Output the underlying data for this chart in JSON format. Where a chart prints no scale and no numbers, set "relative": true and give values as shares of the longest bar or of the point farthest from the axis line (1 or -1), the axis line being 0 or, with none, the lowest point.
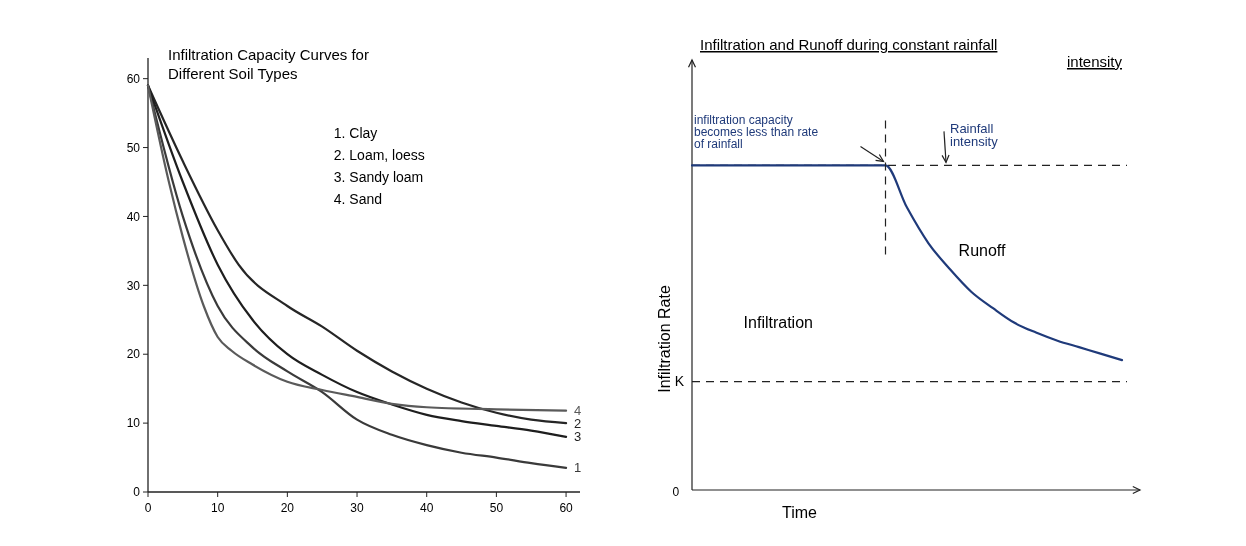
{
  "chart_data": [
    {
      "type": "line",
      "title": "Infiltration Capacity Curves for Different Soil Types",
      "xlim": [
        0,
        62
      ],
      "xticks": [
        0,
        10,
        20,
        30,
        40,
        50,
        60
      ],
      "ylim": [
        0,
        63
      ],
      "yticks": [
        0,
        10,
        20,
        30,
        40,
        50,
        60
      ],
      "grid": false,
      "marker": "none",
      "line_style": "solid",
      "annotations": [
        "1. Clay",
        "2. Loam, loess",
        "3. Sandy loam",
        "4. Sand"
      ],
      "series": [
        {
          "name": "1",
          "color": "#3a3a3a",
          "x": [
            0,
            5,
            10,
            15,
            20,
            25,
            30,
            35,
            40,
            45,
            50,
            55,
            60
          ],
          "values": [
            59,
            40,
            27,
            21,
            17.5,
            14.5,
            10.5,
            8.3,
            6.8,
            5.7,
            5,
            4.2,
            3.5
          ]
        },
        {
          "name": "2",
          "color": "#262626",
          "x": [
            0,
            5,
            10,
            13,
            20,
            25,
            30,
            35,
            40,
            45,
            50,
            55,
            60
          ],
          "values": [
            59,
            48,
            38,
            33,
            27,
            24,
            20.5,
            17.5,
            15,
            13,
            11.5,
            10.5,
            10
          ]
        },
        {
          "name": "3",
          "color": "#1e1e1e",
          "x": [
            0,
            5,
            10,
            15,
            20,
            25,
            30,
            35,
            40,
            45,
            50,
            55,
            60
          ],
          "values": [
            59,
            45,
            33,
            25,
            20,
            17,
            14.5,
            12.7,
            11.2,
            10.3,
            9.6,
            8.9,
            8
          ]
        },
        {
          "name": "4",
          "color": "#5a5a5a",
          "x": [
            0,
            3,
            5,
            8,
            10,
            12,
            15,
            20,
            25,
            30,
            35,
            40,
            50,
            60
          ],
          "values": [
            59,
            45,
            37,
            27,
            22.5,
            20.5,
            18.5,
            16,
            14.8,
            13.8,
            12.8,
            12.3,
            12,
            11.8
          ]
        }
      ]
    },
    {
      "type": "line",
      "title": "Infiltration and Runoff during constant rainfall intensity",
      "xlabel": "Time",
      "ylabel": "Infiltration Rate",
      "relative": true,
      "marker": "none",
      "line_style": "solid",
      "categories": [
        null,
        null,
        null,
        null,
        null,
        null,
        null,
        null,
        null,
        null,
        null,
        null,
        null,
        null,
        null,
        null,
        null,
        null,
        null,
        null,
        null
      ],
      "annotations": [
        "Infiltration",
        "Runoff",
        "0",
        "infiltration capacity becomes less than rate of rainfall"
      ],
      "ref_lines": [
        {
          "axis": "y",
          "value": 1,
          "label": "Rainfall intensity",
          "line_style": "dashed",
          "color": "#222222"
        },
        {
          "axis": "y",
          "value": 0.334,
          "label": "K",
          "line_style": "dashed",
          "color": "#222222"
        }
      ],
      "series": [
        {
          "color": "#1f3a7a",
          "values": [
            1,
            1,
            1,
            1,
            1,
            1,
            1,
            1,
            1,
            1,
            0.87,
            0.76,
            0.68,
            0.61,
            0.56,
            0.515,
            0.485,
            0.46,
            0.44,
            0.42,
            0.4
          ]
        }
      ]
    }
  ]
}
